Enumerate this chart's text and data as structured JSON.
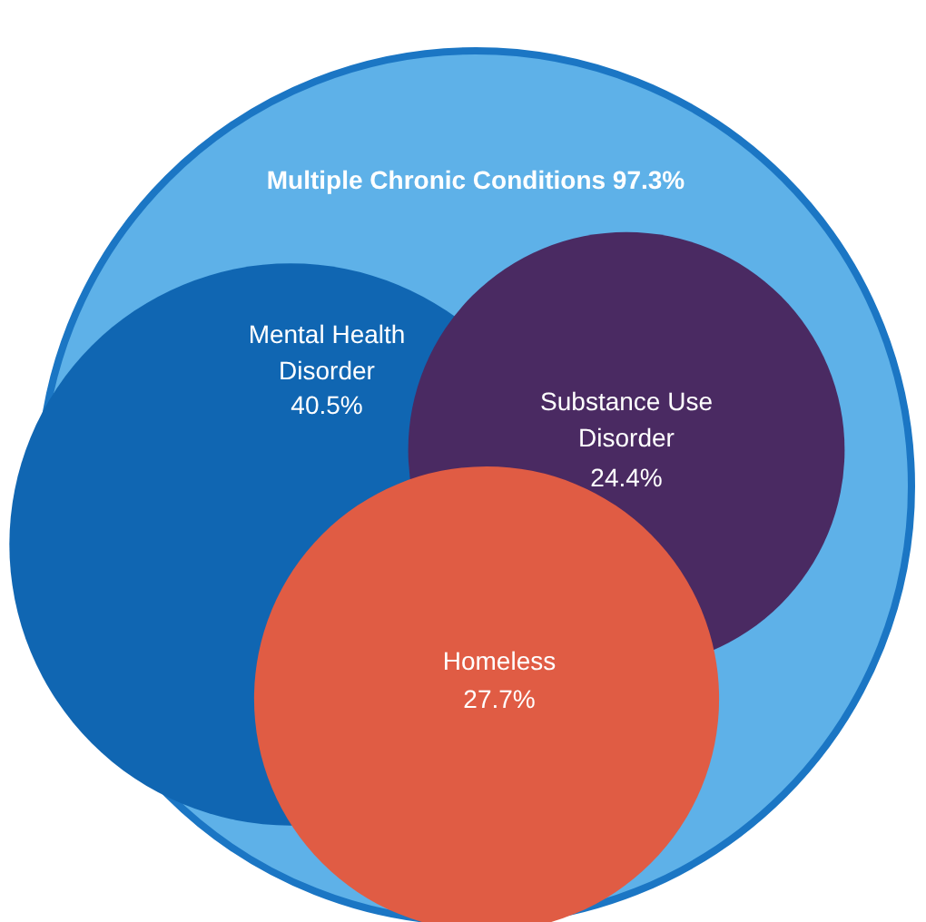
{
  "chart_data": {
    "type": "other",
    "categories": [
      "Multiple Chronic Conditions",
      "Mental Health Disorder",
      "Substance Use Disorder",
      "Homeless"
    ],
    "values": [
      97.3,
      40.5,
      24.4,
      27.7
    ],
    "value_labels": [
      "97.3%",
      "40.5%",
      "24.4%",
      "27.7%"
    ],
    "colors": [
      "#5eb1e8",
      "#1066b2",
      "#4a2a62",
      "#e05c44"
    ]
  }
}
